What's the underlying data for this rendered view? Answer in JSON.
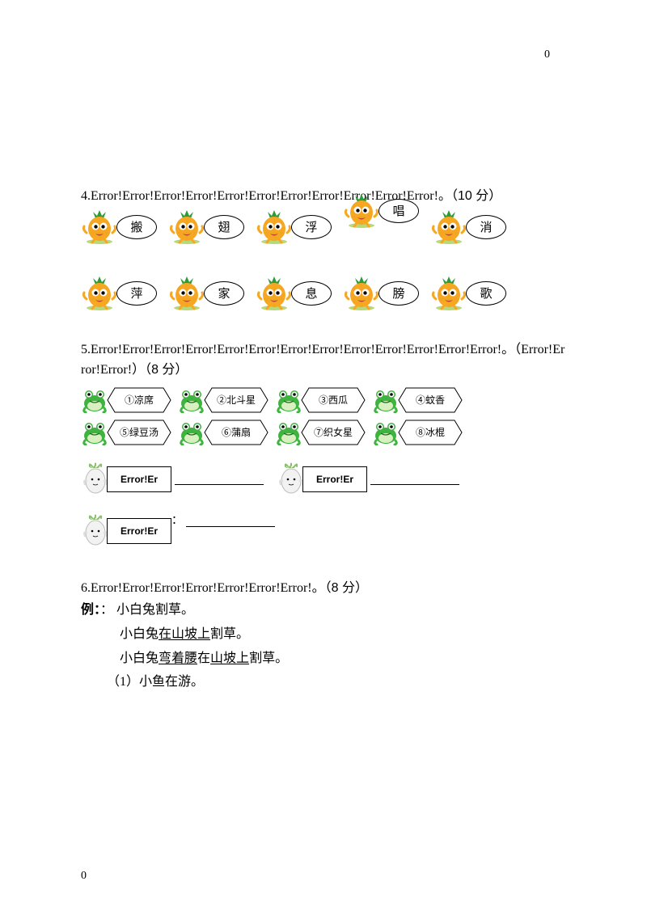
{
  "page": {
    "top_number": "0",
    "bottom_number": "0"
  },
  "q4": {
    "number": "4.",
    "error_text": "Error!Error!Error!Error!Error!Error!Error!Error!Error!Error!Error!",
    "suffix": "。（10 分）",
    "row1": [
      {
        "char": "搬",
        "raised": false
      },
      {
        "char": "翅",
        "raised": false
      },
      {
        "char": "浮",
        "raised": false
      },
      {
        "char": "唱",
        "raised": true
      },
      {
        "char": "消",
        "raised": false
      }
    ],
    "row2": [
      {
        "char": "萍"
      },
      {
        "char": "家"
      },
      {
        "char": "息"
      },
      {
        "char": "膀"
      },
      {
        "char": "歌"
      }
    ]
  },
  "q5": {
    "number": "5.",
    "error_text": "Error!Error!Error!Error!Error!Error!Error!Error!Error!Error!Error!Error!Error!",
    "suffix1": "。（",
    "error_text2": "Error!Error!Error!",
    "suffix2": "）（8 分）",
    "items_row1": [
      {
        "label": "①凉席"
      },
      {
        "label": "②北斗星"
      },
      {
        "label": "③西瓜"
      },
      {
        "label": "④蚊香"
      }
    ],
    "items_row2": [
      {
        "label": "⑤绿豆汤"
      },
      {
        "label": "⑥蒲扇"
      },
      {
        "label": "⑦织女星"
      },
      {
        "label": "⑧冰棍"
      }
    ],
    "answer_label": "Error!Er",
    "answer_colon": "："
  },
  "q6": {
    "number": "6.",
    "error_text": "Error!Error!Error!Error!Error!Error!Error!",
    "suffix": "。（8 分）",
    "example_label": "例：",
    "example_colon": "：",
    "line1": "小白兔割草。",
    "line2_a": "小白兔",
    "line2_u": "在山坡上",
    "line2_b": "割草。",
    "line3_a": "小白兔",
    "line3_u1": "弯着腰",
    "line3_mid": "在",
    "line3_u2": "山坡上",
    "line3_b": "割草。",
    "sub1": "（1）小鱼在游。"
  },
  "colors": {
    "pineapple_body": "#f7a823",
    "pineapple_leaf": "#2a9d3a",
    "pineapple_base": "#b8d87a",
    "eye_white": "#ffffff",
    "eye_black": "#000000",
    "mouth": "#b94a2f",
    "frog_body": "#3fb33f",
    "frog_light": "#d8f0c0",
    "frog_eye": "#ffffff",
    "frog_pupil": "#000000",
    "radish_body": "#e8e8e8",
    "radish_outline": "#999999",
    "radish_leaf": "#8abf6a"
  }
}
